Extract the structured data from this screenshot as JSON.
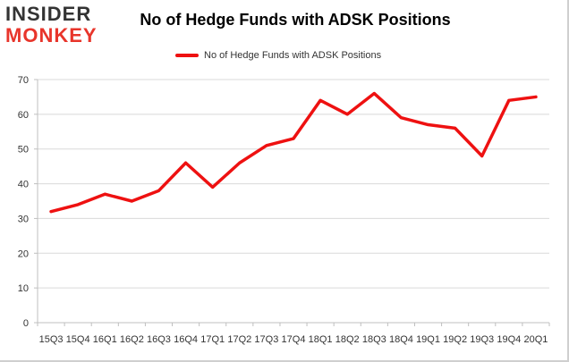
{
  "logo": {
    "top": "INSIDER",
    "bottom": "MONKEY"
  },
  "chart_data": {
    "type": "line",
    "title": "No of Hedge Funds with ADSK Positions",
    "xlabel": "",
    "ylabel": "",
    "categories": [
      "15Q3",
      "15Q4",
      "16Q1",
      "16Q2",
      "16Q3",
      "16Q4",
      "17Q1",
      "17Q2",
      "17Q3",
      "17Q4",
      "18Q1",
      "18Q2",
      "18Q3",
      "18Q4",
      "19Q1",
      "19Q2",
      "19Q3",
      "19Q4",
      "20Q1"
    ],
    "series": [
      {
        "name": "No of Hedge Funds with ADSK Positions",
        "color": "#ee1111",
        "values": [
          32,
          34,
          37,
          35,
          38,
          46,
          39,
          46,
          51,
          53,
          64,
          60,
          66,
          59,
          57,
          56,
          48,
          64,
          65
        ]
      }
    ],
    "ylim": [
      0,
      70
    ],
    "yticks": [
      0,
      10,
      20,
      30,
      40,
      50,
      60,
      70
    ],
    "grid": "horizontal",
    "legend_position": "top-center"
  }
}
